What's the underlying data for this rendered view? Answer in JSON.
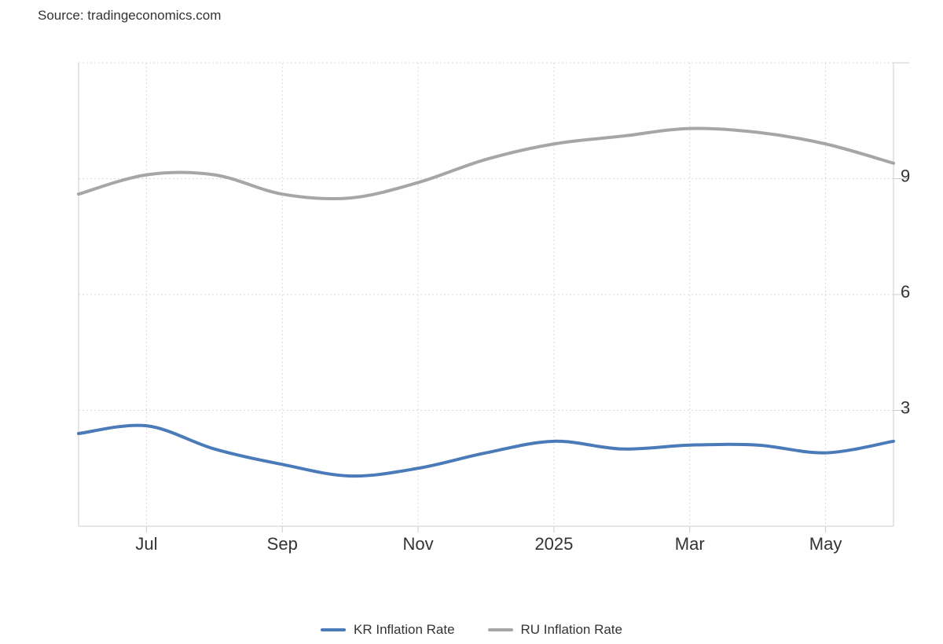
{
  "source_text": "Source: tradingeconomics.com",
  "chart_data": {
    "type": "line",
    "x": [
      "2024-06",
      "2024-07",
      "2024-08",
      "2024-09",
      "2024-10",
      "2024-11",
      "2024-12",
      "2025-01",
      "2025-02",
      "2025-03",
      "2025-04",
      "2025-05",
      "2025-06"
    ],
    "x_tick_labels": [
      "Jul",
      "Sep",
      "Nov",
      "2025",
      "Mar",
      "May"
    ],
    "x_tick_values": [
      "2024-07",
      "2024-09",
      "2024-11",
      "2025-01",
      "2025-03",
      "2025-05"
    ],
    "y_tick_values": [
      3,
      6,
      9
    ],
    "ylim": [
      0,
      12
    ],
    "grid": true,
    "y_axis_position": "right",
    "legend_position": "bottom",
    "series": [
      {
        "name": "KR Inflation Rate",
        "color": "#4a7ab8",
        "values": [
          2.4,
          2.6,
          2.0,
          1.6,
          1.3,
          1.5,
          1.9,
          2.2,
          2.0,
          2.1,
          2.1,
          1.9,
          2.2
        ]
      },
      {
        "name": "RU Inflation Rate",
        "color": "#a6a6a6",
        "values": [
          8.6,
          9.1,
          9.1,
          8.6,
          8.5,
          8.9,
          9.5,
          9.9,
          10.1,
          10.3,
          10.2,
          9.9,
          9.4
        ]
      }
    ]
  }
}
